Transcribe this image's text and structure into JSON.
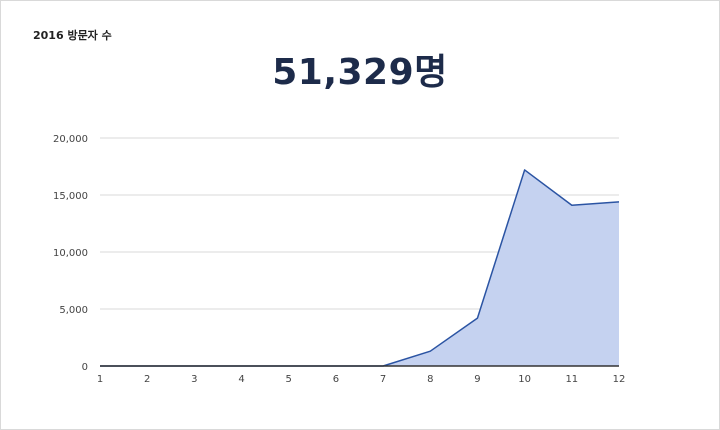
{
  "header": {
    "title": "2016 방문자 수",
    "total": "51,329명"
  },
  "colors": {
    "line": "#2b54a3",
    "fill": "#c5d2f0",
    "grid": "#d9d9d9",
    "axis": "#333333",
    "title_text": "#1d2b4a"
  },
  "chart_data": {
    "type": "area",
    "x": [
      1,
      2,
      3,
      4,
      5,
      6,
      7,
      8,
      9,
      10,
      11,
      12
    ],
    "values": [
      0,
      0,
      0,
      0,
      0,
      0,
      0,
      1300,
      4200,
      17200,
      14100,
      14400
    ],
    "x_tick_labels": [
      "1",
      "2",
      "3",
      "4",
      "5",
      "6",
      "7",
      "8",
      "9",
      "10",
      "11",
      "12"
    ],
    "y_ticks": [
      0,
      5000,
      10000,
      15000,
      20000
    ],
    "y_tick_labels": [
      "0",
      "5,000",
      "10,000",
      "15,000",
      "20,000"
    ],
    "ylim": [
      0,
      20000
    ],
    "xlim": [
      1,
      12
    ],
    "grid": true,
    "legend": "none"
  }
}
